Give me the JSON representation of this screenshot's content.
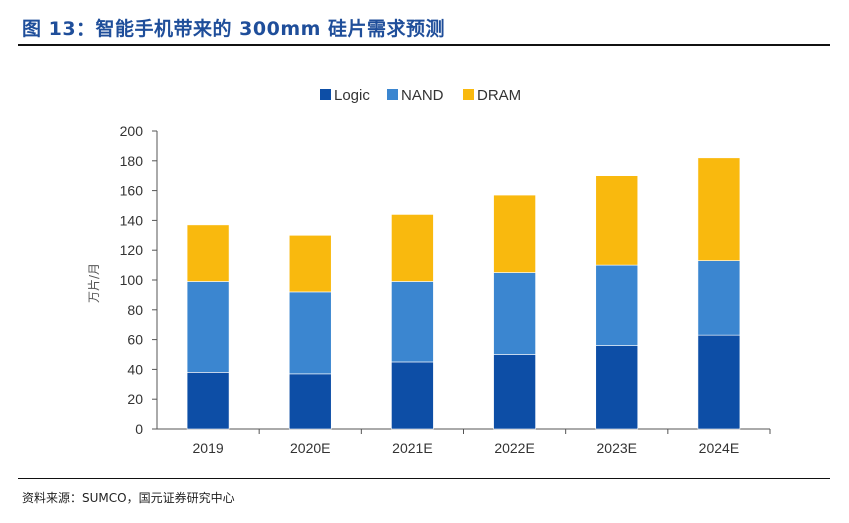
{
  "figure": {
    "title": "图 13：智能手机带来的 300mm 硅片需求预测",
    "source": "资料来源：SUMCO，国元证券研究中心"
  },
  "chart_data": {
    "type": "bar",
    "stacked": true,
    "title": "",
    "xlabel": "",
    "ylabel": "万片/月",
    "ylim": [
      0,
      200
    ],
    "yticks": [
      0,
      20,
      40,
      60,
      80,
      100,
      120,
      140,
      160,
      180,
      200
    ],
    "grid": false,
    "legend_position": "top-center",
    "categories": [
      "2019",
      "2020E",
      "2021E",
      "2022E",
      "2023E",
      "2024E"
    ],
    "series": [
      {
        "name": "Logic",
        "color": "#0d4ea6",
        "values": [
          38,
          37,
          45,
          50,
          56,
          63
        ]
      },
      {
        "name": "NAND",
        "color": "#3b86d0",
        "values": [
          61,
          55,
          54,
          55,
          54,
          50
        ]
      },
      {
        "name": "DRAM",
        "color": "#f9b90e",
        "values": [
          38,
          38,
          45,
          52,
          60,
          69
        ]
      }
    ]
  }
}
